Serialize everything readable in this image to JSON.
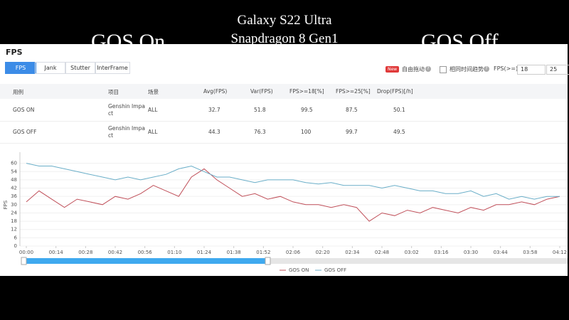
{
  "header": {
    "title": "Galaxy S22 Ultra",
    "subtitle": "Snapdragon 8 Gen1",
    "left_label": "GOS On",
    "right_label": "GOS Off"
  },
  "panel": {
    "title": "FPS",
    "tabs": [
      "FPS",
      "Jank",
      "Stutter",
      "InterFrame"
    ],
    "badge": "New",
    "drag_label": "自由拖动",
    "trend_label": "相同时间趋势",
    "threshold_label": "FPS(>=)",
    "thresholds": [
      18,
      25
    ]
  },
  "table": {
    "columns": [
      "用例",
      "项目",
      "场景",
      "Avg(FPS)",
      "Var(FPS)",
      "FPS>=18[%]",
      "FPS>=25[%]",
      "Drop(FPS)[/h]"
    ],
    "rows": [
      [
        "GOS ON",
        "Genshin Impact",
        "ALL",
        32.7,
        51.8,
        99.5,
        87.5,
        50.1
      ],
      [
        "GOS OFF",
        "Genshin Impact",
        "ALL",
        44.3,
        76.3,
        100,
        99.7,
        49.5
      ]
    ]
  },
  "chart_data": {
    "type": "line",
    "ylabel": "FPS",
    "x": [
      0,
      6,
      12,
      18,
      24,
      30,
      36,
      42,
      48,
      54,
      60,
      66,
      72,
      78,
      84,
      90,
      96,
      102,
      108,
      114,
      120,
      126,
      132,
      138,
      144,
      150,
      156,
      162,
      168,
      174,
      180,
      186,
      192,
      198,
      204,
      210,
      216,
      222,
      228,
      234,
      240,
      246,
      252
    ],
    "xlim": [
      0,
      252
    ],
    "xticks": [
      {
        "value": 0,
        "label": "00:00"
      },
      {
        "value": 14,
        "label": "00:14"
      },
      {
        "value": 28,
        "label": "00:28"
      },
      {
        "value": 42,
        "label": "00:42"
      },
      {
        "value": 56,
        "label": "00:56"
      },
      {
        "value": 70,
        "label": "01:10"
      },
      {
        "value": 84,
        "label": "01:24"
      },
      {
        "value": 98,
        "label": "01:38"
      },
      {
        "value": 112,
        "label": "01:52"
      },
      {
        "value": 126,
        "label": "02:06"
      },
      {
        "value": 140,
        "label": "02:20"
      },
      {
        "value": 154,
        "label": "02:34"
      },
      {
        "value": 168,
        "label": "02:48"
      },
      {
        "value": 182,
        "label": "03:02"
      },
      {
        "value": 196,
        "label": "03:16"
      },
      {
        "value": 210,
        "label": "03:30"
      },
      {
        "value": 224,
        "label": "03:44"
      },
      {
        "value": 238,
        "label": "03:58"
      },
      {
        "value": 252,
        "label": "04:12"
      }
    ],
    "ylim": [
      0,
      66
    ],
    "yticks": [
      0,
      6,
      12,
      18,
      24,
      30,
      36,
      42,
      48,
      54,
      60
    ],
    "grid": true,
    "series": [
      {
        "name": "GOS ON",
        "color": "#c0505a",
        "values": [
          32,
          40,
          34,
          28,
          34,
          32,
          30,
          36,
          34,
          38,
          44,
          40,
          36,
          50,
          56,
          48,
          42,
          36,
          38,
          34,
          36,
          32,
          30,
          30,
          28,
          30,
          28,
          18,
          24,
          22,
          26,
          24,
          28,
          26,
          24,
          28,
          26,
          30,
          30,
          32,
          30,
          34,
          36
        ]
      },
      {
        "name": "GOS OFF",
        "color": "#6aaec8",
        "values": [
          60,
          58,
          58,
          56,
          54,
          52,
          50,
          48,
          50,
          48,
          50,
          52,
          56,
          58,
          54,
          50,
          50,
          48,
          46,
          48,
          48,
          48,
          46,
          45,
          46,
          44,
          44,
          44,
          42,
          44,
          42,
          40,
          40,
          38,
          38,
          40,
          36,
          38,
          34,
          36,
          34,
          36,
          36
        ]
      }
    ]
  }
}
